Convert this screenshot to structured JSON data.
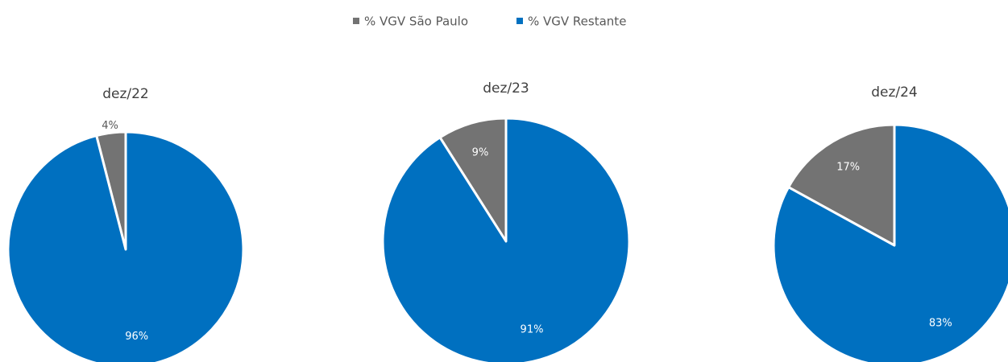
{
  "legend": {
    "names": [
      "% VGV São Paulo",
      "% VGV Restante"
    ],
    "colors": [
      "#737373",
      "#0070c0"
    ]
  },
  "chart_data": [
    {
      "type": "pie",
      "title": "dez/22",
      "values": [
        4,
        96
      ],
      "value_labels": [
        "4%",
        "96%"
      ]
    },
    {
      "type": "pie",
      "title": "dez/23",
      "values": [
        9,
        91
      ],
      "value_labels": [
        "9%",
        "91%"
      ]
    },
    {
      "type": "pie",
      "title": "dez/24",
      "values": [
        17,
        83
      ],
      "value_labels": [
        "17%",
        "83%"
      ]
    }
  ]
}
